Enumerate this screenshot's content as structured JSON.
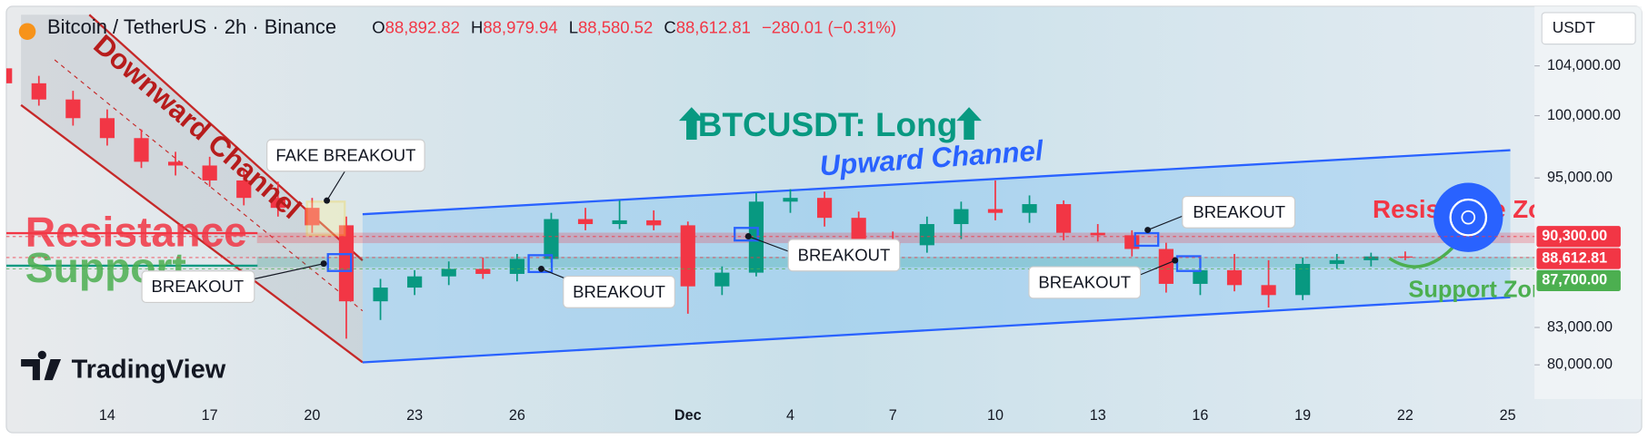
{
  "chart_data": {
    "type": "candlestick",
    "title": "Bitcoin / TetherUS · 2h · Binance",
    "ohlc_header": [
      {
        "key": "O",
        "value": "88,892.82"
      },
      {
        "key": "H",
        "value": "88,979.94"
      },
      {
        "key": "L",
        "value": "88,580.52"
      },
      {
        "key": "C",
        "value": "88,612.81"
      }
    ],
    "change": "−280.01 (−0.31%)",
    "currency": "USDT",
    "logo": "TradingView",
    "categories": [
      null,
      null,
      null,
      "14",
      null,
      null,
      "17",
      null,
      null,
      "20",
      null,
      null,
      "23",
      null,
      null,
      "26",
      null,
      null,
      null,
      null,
      "Dec",
      null,
      null,
      "4",
      null,
      null,
      "7",
      null,
      null,
      "10",
      null,
      null,
      "13",
      null,
      null,
      "16",
      null,
      null,
      "19",
      null,
      null,
      "22",
      null,
      null,
      "25"
    ],
    "open": [
      103800,
      102600,
      101300,
      99800,
      98200,
      96300,
      96000,
      94800,
      93400,
      92600,
      91200,
      85100,
      86200,
      87100,
      87700,
      87300,
      88500,
      91700,
      91300,
      91600,
      91200,
      86300,
      87400,
      93100,
      93400,
      91800,
      89800,
      89600,
      91300,
      92500,
      92200,
      92900,
      90600,
      90400,
      89300,
      86500,
      87600,
      86400,
      85600,
      88100,
      88400,
      88700,
      null,
      null,
      null
    ],
    "high": [
      104600,
      103200,
      102000,
      100500,
      98900,
      97100,
      96700,
      95600,
      94700,
      93400,
      91900,
      86900,
      87600,
      88300,
      88600,
      88900,
      92200,
      92600,
      93200,
      92400,
      91500,
      87900,
      93800,
      94100,
      93900,
      92300,
      90700,
      91900,
      93100,
      94800,
      93600,
      93200,
      91300,
      90800,
      89800,
      88300,
      88900,
      88400,
      88600,
      88900,
      89000,
      89100,
      null,
      null,
      null
    ],
    "low": [
      101900,
      100800,
      99200,
      97600,
      95800,
      95200,
      94300,
      92800,
      91900,
      90600,
      82100,
      83600,
      85600,
      86400,
      86900,
      86700,
      88200,
      90800,
      90900,
      90800,
      84100,
      85600,
      87100,
      92200,
      91100,
      89300,
      88200,
      89000,
      90100,
      91600,
      91400,
      90000,
      89900,
      88700,
      85800,
      85600,
      85900,
      84600,
      85200,
      87700,
      87900,
      88400,
      null,
      null,
      null
    ],
    "close": [
      102600,
      101300,
      99800,
      98200,
      96300,
      96000,
      94800,
      93400,
      92600,
      91200,
      85100,
      86200,
      87100,
      87700,
      87300,
      88500,
      91700,
      91300,
      91600,
      91200,
      86300,
      87400,
      93100,
      93400,
      91800,
      89800,
      89600,
      91300,
      92500,
      92200,
      92900,
      90600,
      90400,
      89300,
      86500,
      87600,
      86400,
      85600,
      88100,
      88400,
      88700,
      88612.81,
      null,
      null,
      null
    ],
    "up_color": "#089981",
    "down_color": "#f23645",
    "ylim": [
      77250,
      108780
    ],
    "yticks": [
      {
        "value": 80000,
        "label": "80,000.00"
      },
      {
        "value": 83000,
        "label": "83,000.00"
      },
      {
        "value": 95000,
        "label": "95,000.00"
      },
      {
        "value": 100000,
        "label": "100,000.00"
      },
      {
        "value": 104000,
        "label": "104,000.00"
      }
    ],
    "grid": false,
    "price_lines": [
      {
        "value": 90300,
        "label": "90,300.00",
        "color": "#f23645"
      },
      {
        "value": 88612.81,
        "label": "88,612.81",
        "color": "#f23645"
      },
      {
        "value": 87700,
        "label": "87,700.00",
        "color": "#4caf50"
      }
    ],
    "annotations": {
      "downward_channel": "Downward Channel",
      "upward_channel": "Upward Channel",
      "signal": "BTCUSDT: Long",
      "resistance": "Resistance",
      "support": "Support",
      "resistance_zone": "Resistance Zone",
      "support_zone": "Support Zone",
      "fake_breakout": "FAKE BREAKOUT",
      "breakouts": [
        "BREAKOUT",
        "BREAKOUT",
        "BREAKOUT",
        "BREAKOUT",
        "BREAKOUT"
      ]
    }
  }
}
